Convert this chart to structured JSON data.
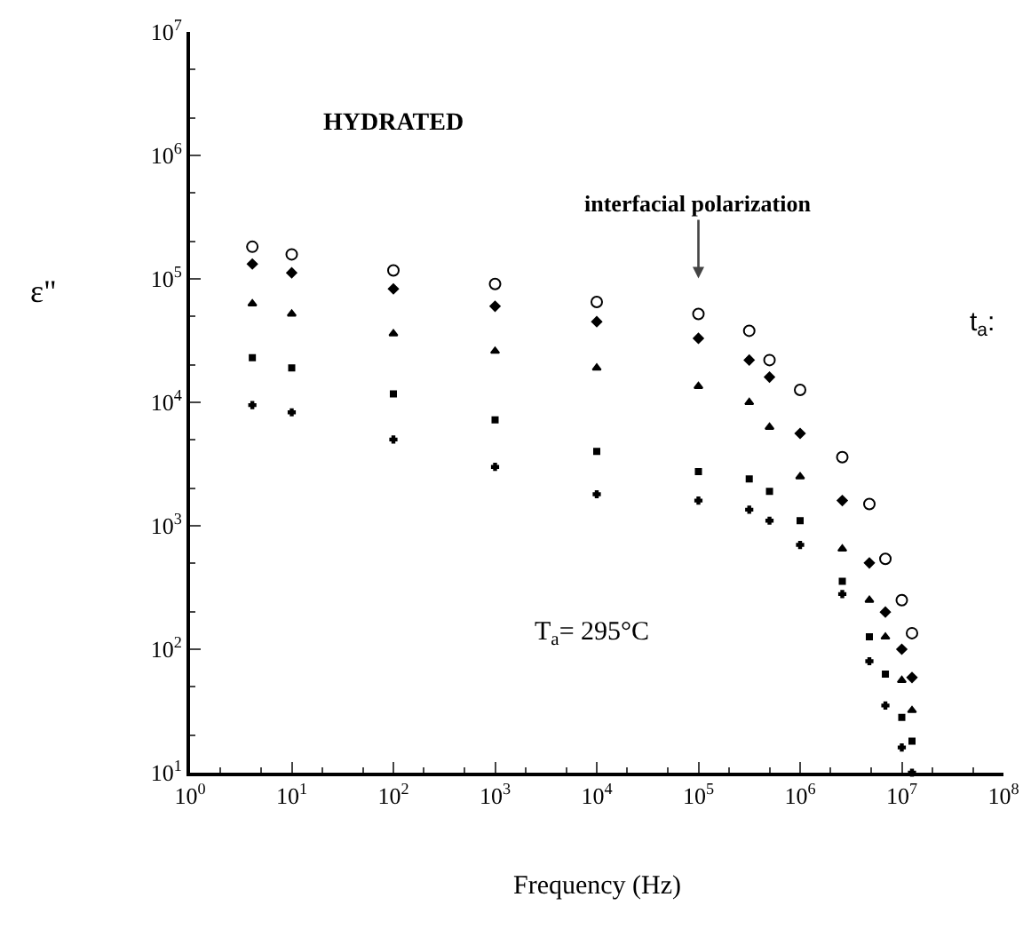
{
  "chart_data": {
    "type": "scatter",
    "xlabel": "Frequency (Hz)",
    "ylabel": "ε\"",
    "log": "xy",
    "x": [
      4.1,
      10,
      100,
      1000,
      10000,
      100000,
      316000,
      500000,
      1000000,
      2600000,
      4800000,
      6900000,
      10000000,
      12600000
    ],
    "xlim": [
      1,
      100000000
    ],
    "ylim": [
      10,
      10000000
    ],
    "xticks": [
      {
        "value": 1,
        "label": "10$^{0}$"
      },
      {
        "value": 10,
        "label": "10$^{1}$"
      },
      {
        "value": 100,
        "label": "10$^{2}$"
      },
      {
        "value": 1000,
        "label": "10$^{3}$"
      },
      {
        "value": 10000,
        "label": "10$^{4}$"
      },
      {
        "value": 100000,
        "label": "10$^{5}$"
      },
      {
        "value": 1000000,
        "label": "10$^{6}$"
      },
      {
        "value": 10000000,
        "label": "10$^{7}$"
      },
      {
        "value": 100000000,
        "label": "10$^{8}$"
      }
    ],
    "yticks": [
      {
        "value": 10,
        "label": "10$^{1}$"
      },
      {
        "value": 100,
        "label": "10$^{2}$"
      },
      {
        "value": 1000,
        "label": "10$^{3}$"
      },
      {
        "value": 10000,
        "label": "10$^{4}$"
      },
      {
        "value": 100000,
        "label": "10$^{5}$"
      },
      {
        "value": 1000000,
        "label": "10$^{6}$"
      },
      {
        "value": 10000000,
        "label": "10$^{7}$"
      }
    ],
    "series": [
      {
        "color": "#000000",
        "marker": "circle",
        "values": [
          182000,
          158000,
          117000,
          91000,
          65000,
          52000,
          38000,
          22000,
          12600,
          3600,
          1500,
          540,
          250,
          135
        ]
      },
      {
        "color": "#000000",
        "marker": "diamond",
        "values": [
          132000,
          112000,
          83000,
          60000,
          45000,
          33000,
          22000,
          16000,
          5600,
          1600,
          500,
          200,
          100,
          59
        ]
      },
      {
        "color": "#000000",
        "marker": "triangle",
        "values": [
          63000,
          52000,
          36000,
          26000,
          19000,
          13500,
          10000,
          6300,
          2500,
          650,
          250,
          126,
          56,
          32
        ]
      },
      {
        "color": "#000000",
        "marker": "square",
        "values": [
          23000,
          19000,
          11700,
          7200,
          4000,
          2750,
          2400,
          1900,
          1100,
          355,
          126,
          63,
          28,
          18
        ]
      },
      {
        "color": "#000000",
        "marker": "cross",
        "values": [
          9500,
          8300,
          5000,
          3000,
          1800,
          1600,
          1350,
          1100,
          700,
          280,
          80,
          35,
          16,
          10
        ]
      }
    ],
    "annotations": [
      "HYDRATED",
      {
        "text": "interfacial polarization",
        "x": 100000,
        "y": 52000
      },
      "T$_{a}$= 295°C",
      "t$_{a}$:"
    ]
  }
}
